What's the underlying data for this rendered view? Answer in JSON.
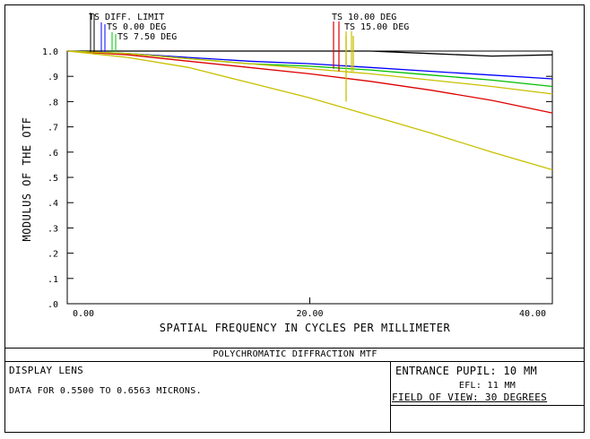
{
  "chart_data": {
    "type": "line",
    "title": "",
    "xlabel": "SPATIAL FREQUENCY IN CYCLES PER MILLIMETER",
    "ylabel": "MODULUS OF THE OTF",
    "xlim": [
      0,
      40
    ],
    "ylim": [
      0,
      1
    ],
    "x_ticks": [
      0,
      20,
      40
    ],
    "x_tick_labels": [
      "0.00",
      "20.00",
      "40.00"
    ],
    "y_ticks": [
      0,
      0.1,
      0.2,
      0.3,
      0.4,
      0.5,
      0.6,
      0.7,
      0.8,
      0.9,
      1.0
    ],
    "y_tick_labels": [
      ".0",
      ".1",
      ".2",
      ".3",
      ".4",
      ".5",
      ".6",
      ".7",
      ".8",
      ".9",
      "1.0"
    ],
    "grid": false,
    "series": [
      {
        "name": "TS DIFF. LIMIT",
        "color": "#000000",
        "x": [
          0,
          5,
          10,
          15,
          20,
          25,
          30,
          35,
          40
        ],
        "y": [
          1.0,
          1.0,
          1.0,
          1.0,
          1.0,
          1.0,
          0.99,
          0.98,
          0.985
        ]
      },
      {
        "name": "0.00 DEG",
        "color": "#0000ff",
        "x": [
          0,
          5,
          10,
          15,
          20,
          25,
          30,
          35,
          40
        ],
        "y": [
          1.0,
          0.99,
          0.975,
          0.96,
          0.95,
          0.935,
          0.92,
          0.905,
          0.89
        ]
      },
      {
        "name": "7.50 DEG",
        "color": "#00c000",
        "x": [
          0,
          5,
          10,
          15,
          20,
          25,
          30,
          35,
          40
        ],
        "y": [
          1.0,
          0.99,
          0.97,
          0.95,
          0.94,
          0.925,
          0.905,
          0.885,
          0.86
        ]
      },
      {
        "name": "10.00 DEG",
        "color": "#dd0000",
        "x": [
          0,
          5,
          10,
          15,
          20,
          25,
          30,
          35,
          40
        ],
        "y": [
          1.0,
          0.985,
          0.96,
          0.935,
          0.91,
          0.88,
          0.845,
          0.805,
          0.755
        ]
      },
      {
        "name": "15.00 DEG",
        "color": "#c8c000",
        "x": [
          0,
          5,
          10,
          15,
          20,
          25,
          30,
          35,
          40
        ],
        "y": [
          1.0,
          0.99,
          0.97,
          0.95,
          0.93,
          0.91,
          0.885,
          0.86,
          0.83
        ]
      },
      {
        "name": "15.00 DEG (S)",
        "color": "#c8c000",
        "x": [
          0,
          5,
          10,
          15,
          20,
          25,
          30,
          35,
          40
        ],
        "y": [
          1.0,
          0.975,
          0.935,
          0.875,
          0.815,
          0.745,
          0.675,
          0.6,
          0.53
        ]
      }
    ],
    "legend": {
      "left_labels": [
        "TS DIFF. LIMIT",
        "TS 0.00 DEG",
        "TS 7.50 DEG"
      ],
      "right_labels": [
        "TS 10.00 DEG",
        "TS 15.00 DEG"
      ]
    }
  },
  "footer": {
    "title": "POLYCHROMATIC DIFFRACTION MTF",
    "lens": "DISPLAY LENS",
    "data_range": "DATA FOR 0.5500 TO 0.6563 MICRONS.",
    "entrance_pupil": "ENTRANCE PUPIL: 10 MM",
    "efl": "EFL: 11 MM",
    "fov": "FIELD OF VIEW: 30 DEGREES"
  }
}
